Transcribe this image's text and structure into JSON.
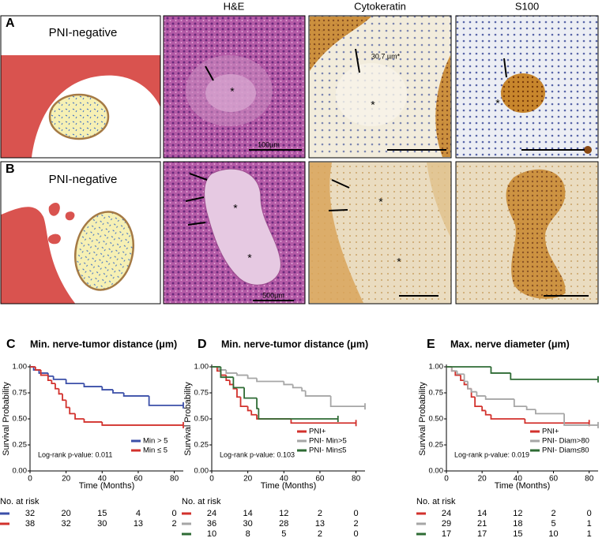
{
  "figure": {
    "columns": [
      "H&E",
      "Cytokeratin",
      "S100"
    ],
    "rows": [
      {
        "label": "A",
        "schematic_label": "PNI-negative",
        "annotations": [
          "*",
          "100µm",
          "30.7 µm*",
          "*",
          "*"
        ]
      },
      {
        "label": "B",
        "schematic_label": "PNI-negative",
        "annotations": [
          "*",
          "*",
          "500µm",
          "*",
          "*"
        ]
      }
    ]
  },
  "chart_data": [
    {
      "type": "line",
      "panel_label": "C",
      "title": "Min. nerve-tumor distance (μm)",
      "x_label": "Time (Months)",
      "y_label": "Survival Probability",
      "annotation": "Log-rank p-value: 0.011",
      "legend": "lower right",
      "xlim": [
        0,
        85
      ],
      "ylim": [
        0,
        1
      ],
      "xticks": [
        0,
        20,
        40,
        60,
        80
      ],
      "yticks": [
        {
          "value": 0,
          "label": "0.00"
        },
        {
          "value": 0.25,
          "label": "0.25"
        },
        {
          "value": 0.5,
          "label": "0.50"
        },
        {
          "value": 0.75,
          "label": "0.75"
        },
        {
          "value": 1,
          "label": "1.00"
        }
      ],
      "series": [
        {
          "name": "Min > 5",
          "color": "#3b4fa8",
          "x": [
            0,
            2,
            5,
            10,
            13,
            20,
            30,
            40,
            46,
            52,
            66,
            85
          ],
          "values": [
            1,
            0.97,
            0.94,
            0.91,
            0.88,
            0.84,
            0.81,
            0.78,
            0.75,
            0.72,
            0.63,
            0.63
          ]
        },
        {
          "name": "Min ≤ 5",
          "color": "#d2312c",
          "x": [
            0,
            3,
            6,
            10,
            12,
            14,
            16,
            18,
            20,
            22,
            25,
            30,
            40,
            85
          ],
          "values": [
            1,
            0.97,
            0.92,
            0.87,
            0.84,
            0.79,
            0.74,
            0.68,
            0.61,
            0.55,
            0.5,
            0.47,
            0.44,
            0.44
          ]
        }
      ],
      "risk_table": {
        "title": "No. at risk",
        "rows": [
          [
            32,
            20,
            15,
            4,
            0
          ],
          [
            38,
            32,
            30,
            13,
            2
          ]
        ]
      }
    },
    {
      "type": "line",
      "panel_label": "D",
      "title": "Min. nerve-tumor distance (μm)",
      "x_label": "Time (Months)",
      "y_label": "Survival Probability",
      "annotation": "Log-rank p-value: 0.103",
      "legend": "lower right",
      "xlim": [
        0,
        85
      ],
      "ylim": [
        0,
        1
      ],
      "xticks": [
        0,
        20,
        40,
        60,
        80
      ],
      "yticks": [
        {
          "value": 0,
          "label": "0.00"
        },
        {
          "value": 0.25,
          "label": "0.25"
        },
        {
          "value": 0.5,
          "label": "0.50"
        },
        {
          "value": 0.75,
          "label": "0.75"
        },
        {
          "value": 1,
          "label": "1.00"
        }
      ],
      "series": [
        {
          "name": "PNI+",
          "color": "#d2312c",
          "x": [
            0,
            3,
            5,
            8,
            10,
            12,
            14,
            16,
            20,
            22,
            25,
            44,
            80
          ],
          "values": [
            1,
            0.96,
            0.92,
            0.87,
            0.83,
            0.79,
            0.71,
            0.62,
            0.58,
            0.54,
            0.5,
            0.46,
            0.46
          ]
        },
        {
          "name": "PNI- Min>5",
          "color": "#a6a6a6",
          "x": [
            0,
            4,
            8,
            14,
            20,
            25,
            40,
            45,
            50,
            52,
            66,
            85
          ],
          "values": [
            1,
            0.97,
            0.94,
            0.92,
            0.89,
            0.86,
            0.83,
            0.8,
            0.77,
            0.72,
            0.62,
            0.62
          ]
        },
        {
          "name": "PNI- Min≤5",
          "color": "#2e6b34",
          "x": [
            0,
            5,
            12,
            18,
            25,
            26,
            70
          ],
          "values": [
            1,
            0.9,
            0.8,
            0.7,
            0.6,
            0.5,
            0.5
          ]
        }
      ],
      "risk_table": {
        "title": "No. at risk",
        "rows": [
          [
            24,
            14,
            12,
            2,
            0
          ],
          [
            36,
            30,
            28,
            13,
            2
          ],
          [
            10,
            8,
            5,
            2,
            0
          ]
        ]
      }
    },
    {
      "type": "line",
      "panel_label": "E",
      "title": "Max. nerve diameter (μm)",
      "x_label": "Time (Months)",
      "y_label": "Survival Probability",
      "annotation": "Log-rank p-value: 0.019",
      "legend": "lower right",
      "xlim": [
        0,
        85
      ],
      "ylim": [
        0,
        1
      ],
      "xticks": [
        0,
        20,
        40,
        60,
        80
      ],
      "yticks": [
        {
          "value": 0,
          "label": "0.00"
        },
        {
          "value": 0.25,
          "label": "0.25"
        },
        {
          "value": 0.5,
          "label": "0.50"
        },
        {
          "value": 0.75,
          "label": "0.75"
        },
        {
          "value": 1,
          "label": "1.00"
        }
      ],
      "series": [
        {
          "name": "PNI+",
          "color": "#d2312c",
          "x": [
            0,
            3,
            5,
            8,
            10,
            12,
            14,
            16,
            20,
            22,
            25,
            44,
            80
          ],
          "values": [
            1,
            0.96,
            0.92,
            0.87,
            0.83,
            0.79,
            0.71,
            0.62,
            0.58,
            0.54,
            0.5,
            0.46,
            0.46
          ]
        },
        {
          "name": "PNI- Diam>80",
          "color": "#a6a6a6",
          "x": [
            0,
            3,
            6,
            10,
            12,
            14,
            17,
            22,
            38,
            45,
            50,
            66,
            85
          ],
          "values": [
            1,
            0.96,
            0.93,
            0.86,
            0.79,
            0.76,
            0.72,
            0.69,
            0.62,
            0.59,
            0.55,
            0.44,
            0.44
          ]
        },
        {
          "name": "PNI- Diam≤80",
          "color": "#2e6b34",
          "x": [
            0,
            25,
            36,
            85
          ],
          "values": [
            1,
            0.94,
            0.88,
            0.88
          ]
        }
      ],
      "risk_table": {
        "title": "No. at risk",
        "rows": [
          [
            24,
            14,
            12,
            2,
            0
          ],
          [
            29,
            21,
            18,
            5,
            1
          ],
          [
            17,
            17,
            15,
            10,
            1
          ]
        ]
      }
    }
  ]
}
